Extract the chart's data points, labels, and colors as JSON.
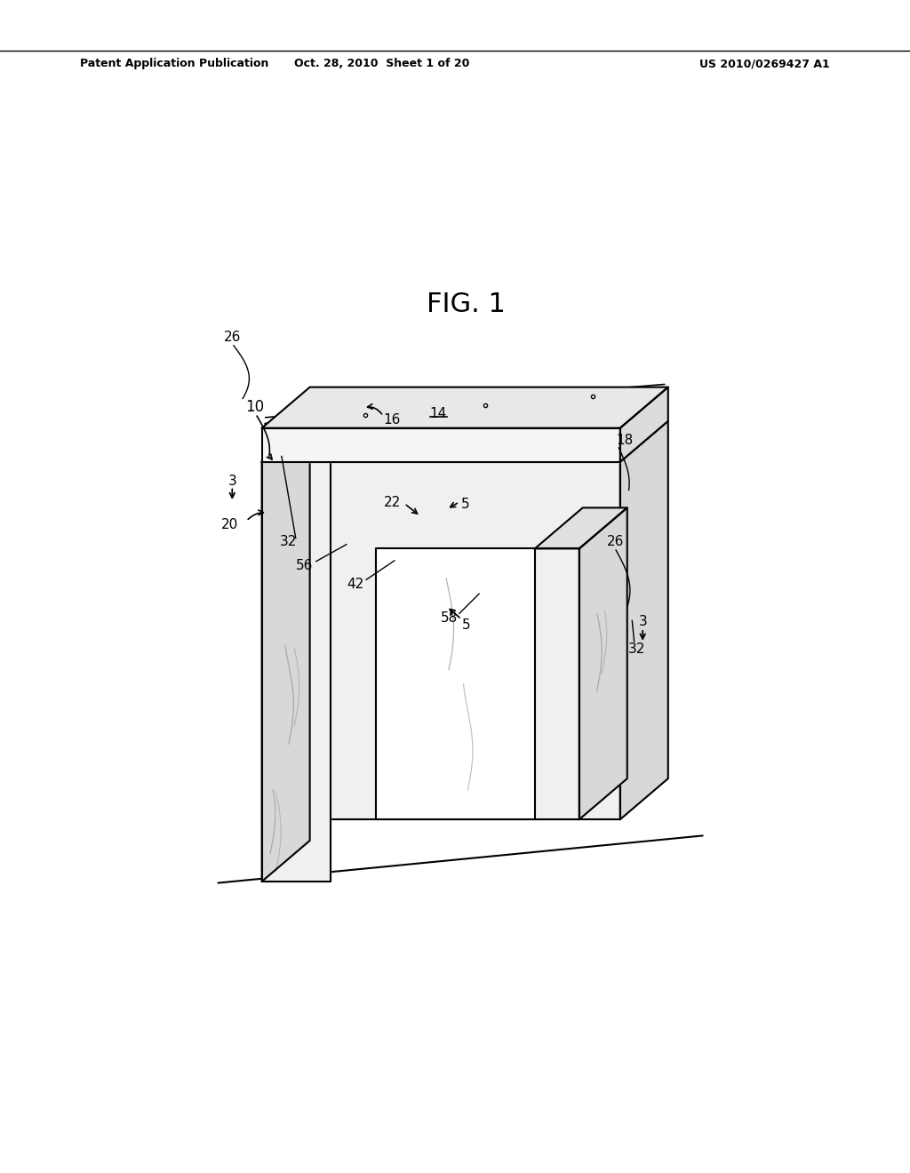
{
  "background_color": "#ffffff",
  "header_left": "Patent Application Publication",
  "header_center": "Oct. 28, 2010  Sheet 1 of 20",
  "header_right": "US 2010/0269427 A1",
  "figure_title": "FIG. 1",
  "line_color": "#000000",
  "line_width": 1.5
}
